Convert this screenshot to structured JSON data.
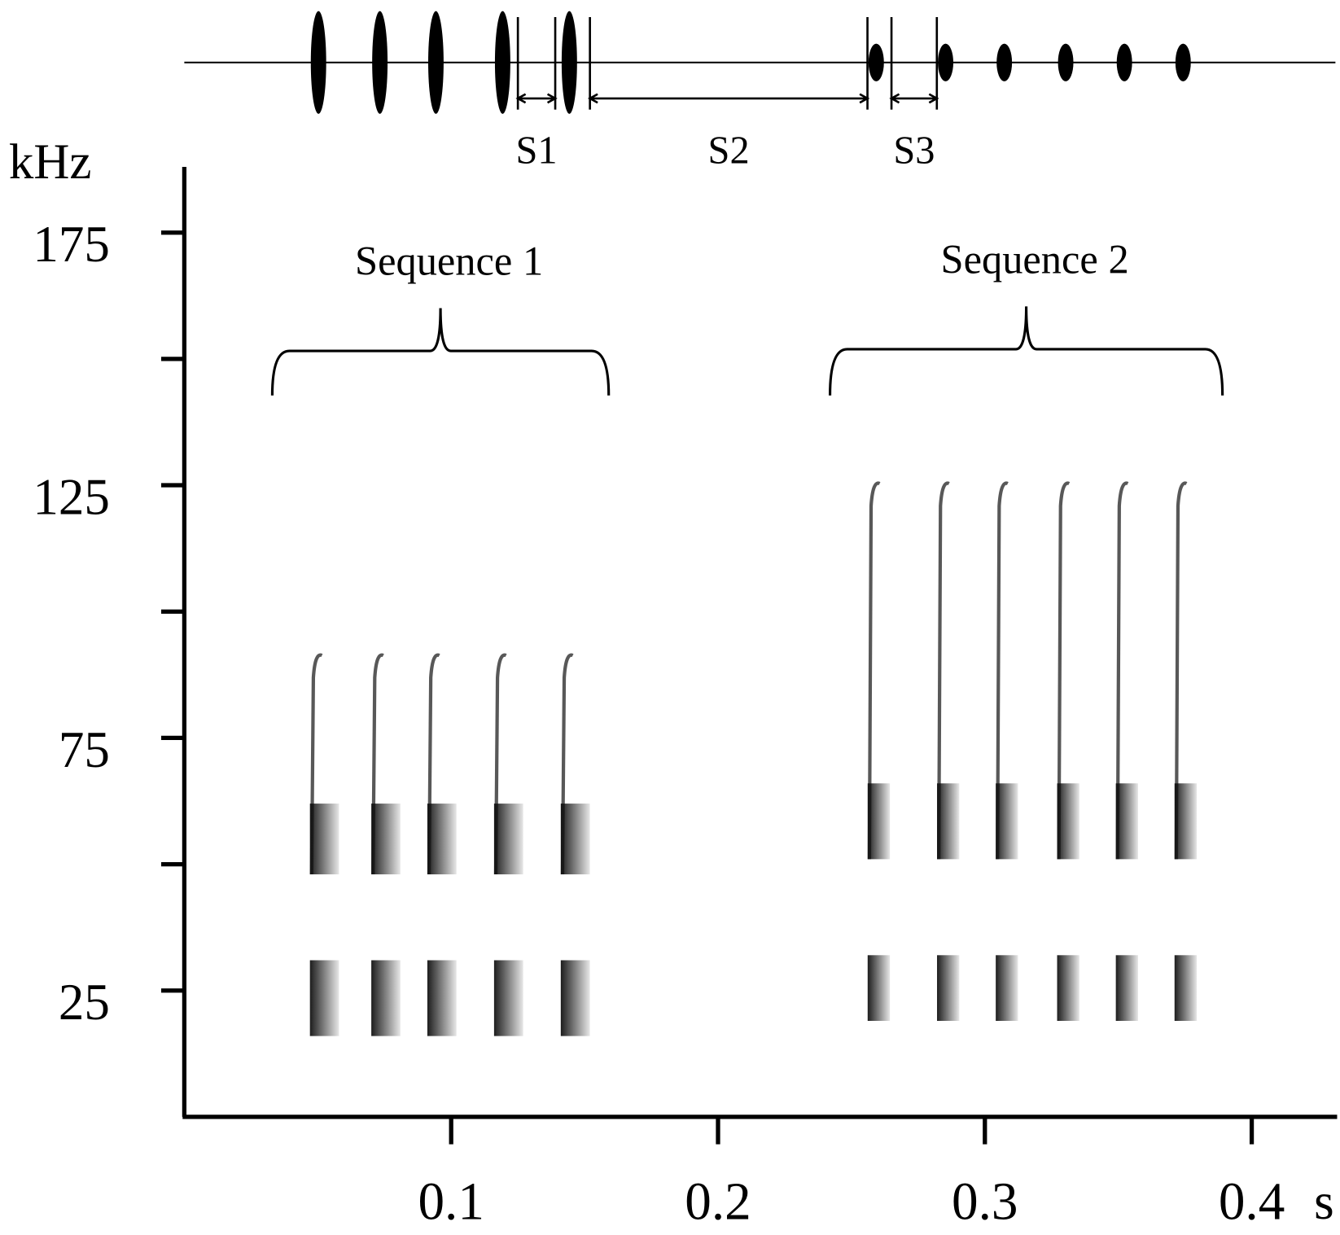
{
  "chart_data": {
    "type": "spectrogram",
    "x_unit": "s",
    "y_unit": "kHz",
    "xlim": [
      0,
      0.432
    ],
    "ylim": [
      0,
      188
    ],
    "xticks": [
      0.1,
      0.2,
      0.3,
      0.4
    ],
    "yticks": [
      25,
      75,
      125,
      175
    ],
    "yminorticks": [
      50,
      100,
      150
    ],
    "color": "#111111",
    "series": [
      {
        "name": "Sequence 1",
        "x": [
          0.049,
          0.072,
          0.093,
          0.118,
          0.143
        ],
        "bands": [
          [
            16,
            31
          ],
          [
            48,
            62
          ]
        ],
        "sweep_top": 92
      },
      {
        "name": "Sequence 2",
        "x": [
          0.258,
          0.284,
          0.306,
          0.329,
          0.351,
          0.373
        ],
        "bands": [
          [
            19,
            32
          ],
          [
            51,
            66
          ]
        ],
        "sweep_top": 126
      }
    ],
    "intervals": [
      {
        "label": "S1",
        "start": 0.125,
        "end": 0.139
      },
      {
        "label": "S2",
        "start": 0.152,
        "end": 0.256
      },
      {
        "label": "S3",
        "start": 0.265,
        "end": 0.282
      }
    ]
  }
}
